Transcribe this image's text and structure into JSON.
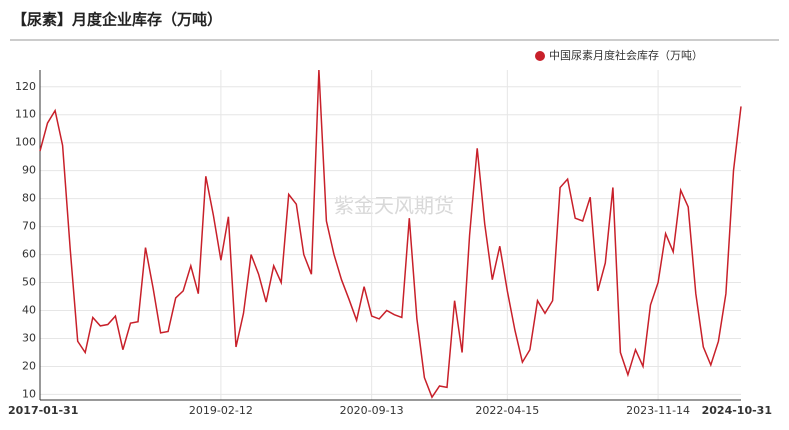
{
  "chart_data": {
    "type": "line",
    "title": "【尿素】月度企业库存（万吨）",
    "watermark": "紫金天风期货",
    "legend": "top-right",
    "grid": true,
    "categories": [
      "2017-01-31",
      null,
      null,
      null,
      null,
      null,
      null,
      null,
      null,
      null,
      null,
      null,
      null,
      null,
      null,
      null,
      null,
      null,
      null,
      null,
      null,
      null,
      null,
      null,
      "2019-02-12",
      null,
      null,
      null,
      null,
      null,
      null,
      null,
      null,
      null,
      null,
      null,
      null,
      null,
      null,
      null,
      null,
      null,
      null,
      null,
      "2020-09-13",
      null,
      null,
      null,
      null,
      null,
      null,
      null,
      null,
      null,
      null,
      null,
      null,
      null,
      null,
      null,
      null,
      null,
      "2022-04-15",
      null,
      null,
      null,
      null,
      null,
      null,
      null,
      null,
      null,
      null,
      null,
      null,
      null,
      null,
      null,
      null,
      null,
      null,
      null,
      "2023-11-14",
      null,
      null,
      null,
      null,
      null,
      null,
      null,
      null,
      null,
      null,
      "2024-10-31"
    ],
    "series": [
      {
        "name": "中国尿素月度社会库存（万吨）",
        "color": "#c8202a",
        "values": [
          97,
          107,
          111.5,
          99,
          62,
          29,
          25,
          37.5,
          34.5,
          35,
          38,
          26,
          35.5,
          36,
          62.5,
          48,
          32,
          32.5,
          44.5,
          47,
          56,
          46,
          88,
          74,
          58,
          73.5,
          27,
          39,
          60,
          53,
          43,
          56,
          50,
          81.5,
          78,
          60,
          53,
          126,
          72,
          60,
          51,
          44,
          36.5,
          48.5,
          38,
          37,
          40,
          38.5,
          37.5,
          73,
          37,
          16,
          9,
          13,
          12.5,
          43.5,
          25,
          67,
          98,
          71,
          51,
          63,
          47,
          33,
          21.5,
          26,
          43.5,
          39,
          43.5,
          84,
          87,
          73,
          72,
          80.5,
          47,
          57,
          84,
          25,
          17,
          26,
          20,
          42,
          50,
          67.5,
          61,
          83,
          77,
          46,
          27,
          20.5,
          29,
          46,
          90,
          113
        ]
      }
    ],
    "ylim": [
      8,
      126
    ],
    "yticks": [
      10,
      20,
      30,
      40,
      50,
      60,
      70,
      80,
      90,
      100,
      110,
      120
    ]
  }
}
